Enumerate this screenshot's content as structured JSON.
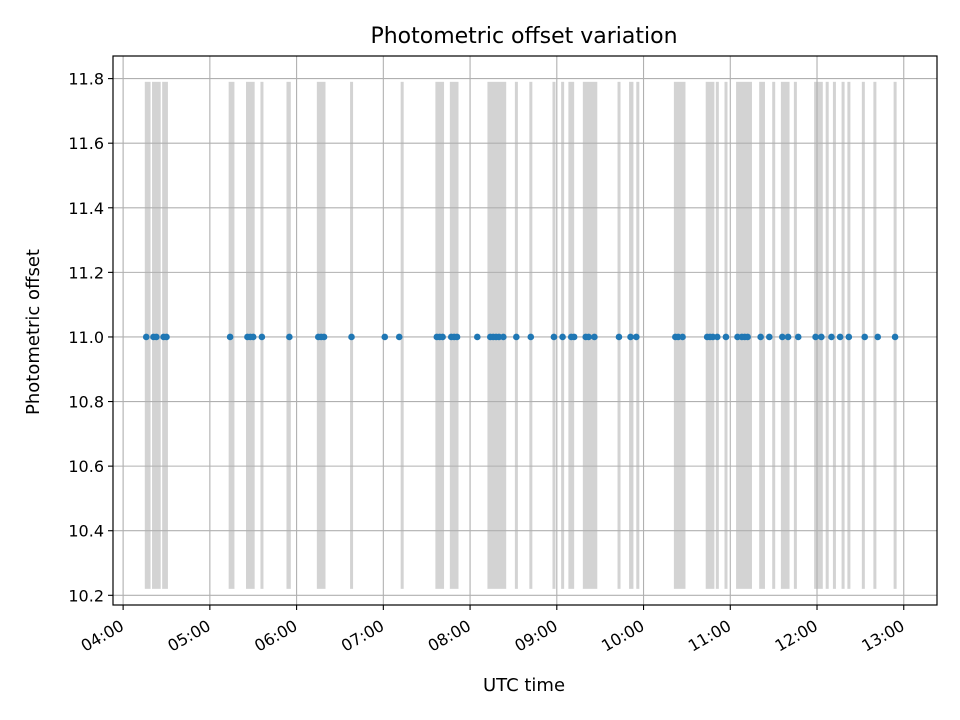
{
  "chart_data": {
    "type": "scatter",
    "title": "Photometric offset variation",
    "xlabel": "UTC time",
    "ylabel": "Photometric offset",
    "xlim": [
      "03:53",
      "13:23"
    ],
    "ylim": [
      10.17,
      11.87
    ],
    "xticks": [
      "04:00",
      "05:00",
      "06:00",
      "07:00",
      "08:00",
      "09:00",
      "10:00",
      "11:00",
      "12:00",
      "13:00"
    ],
    "yticks": [
      "10.2",
      "10.4",
      "10.6",
      "10.8",
      "11.0",
      "11.2",
      "11.4",
      "11.6",
      "11.8"
    ],
    "grid": true,
    "marker_color": "#1f77b4",
    "band_color": "#d3d3d3",
    "band_range": [
      10.22,
      11.79
    ],
    "exposure_bands": [
      [
        "04:15",
        "04:19"
      ],
      [
        "04:20",
        "04:26"
      ],
      [
        "04:27",
        "04:31"
      ],
      [
        "05:13",
        "05:17"
      ],
      [
        "05:25",
        "05:31"
      ],
      [
        "05:35",
        "05:37"
      ],
      [
        "05:53",
        "05:56"
      ],
      [
        "06:14",
        "06:20"
      ],
      [
        "06:37",
        "06:39"
      ],
      [
        "07:12",
        "07:14"
      ],
      [
        "07:36",
        "07:42"
      ],
      [
        "07:46",
        "07:52"
      ],
      [
        "08:12",
        "08:25"
      ],
      [
        "08:31",
        "08:33"
      ],
      [
        "08:41",
        "08:43"
      ],
      [
        "08:57",
        "08:59"
      ],
      [
        "09:03",
        "09:05"
      ],
      [
        "09:08",
        "09:12"
      ],
      [
        "09:18",
        "09:28"
      ],
      [
        "09:42",
        "09:44"
      ],
      [
        "09:50",
        "09:53"
      ],
      [
        "09:55",
        "09:57"
      ],
      [
        "10:21",
        "10:29"
      ],
      [
        "10:43",
        "10:49"
      ],
      [
        "10:50",
        "10:52"
      ],
      [
        "10:56",
        "10:58"
      ],
      [
        "11:04",
        "11:15"
      ],
      [
        "11:20",
        "11:24"
      ],
      [
        "11:29",
        "11:31"
      ],
      [
        "11:35",
        "11:41"
      ],
      [
        "11:44",
        "11:46"
      ],
      [
        "11:58",
        "12:04"
      ],
      [
        "12:06",
        "12:08"
      ],
      [
        "12:11",
        "12:13"
      ],
      [
        "12:17",
        "12:19"
      ],
      [
        "12:21",
        "12:23"
      ],
      [
        "12:31",
        "12:33"
      ],
      [
        "12:39",
        "12:41"
      ],
      [
        "12:53",
        "12:55"
      ]
    ],
    "points": [
      {
        "x": "04:16",
        "y": 11.0
      },
      {
        "x": "04:21",
        "y": 11.0
      },
      {
        "x": "04:23",
        "y": 11.0
      },
      {
        "x": "04:28",
        "y": 11.0
      },
      {
        "x": "04:30",
        "y": 11.0
      },
      {
        "x": "05:14",
        "y": 11.0
      },
      {
        "x": "05:26",
        "y": 11.0
      },
      {
        "x": "05:28",
        "y": 11.0
      },
      {
        "x": "05:30",
        "y": 11.0
      },
      {
        "x": "05:36",
        "y": 11.0
      },
      {
        "x": "05:55",
        "y": 11.0
      },
      {
        "x": "06:15",
        "y": 11.0
      },
      {
        "x": "06:17",
        "y": 11.0
      },
      {
        "x": "06:19",
        "y": 11.0
      },
      {
        "x": "06:38",
        "y": 11.0
      },
      {
        "x": "07:01",
        "y": 11.0
      },
      {
        "x": "07:11",
        "y": 11.0
      },
      {
        "x": "07:37",
        "y": 11.0
      },
      {
        "x": "07:39",
        "y": 11.0
      },
      {
        "x": "07:41",
        "y": 11.0
      },
      {
        "x": "07:47",
        "y": 11.0
      },
      {
        "x": "07:49",
        "y": 11.0
      },
      {
        "x": "07:51",
        "y": 11.0
      },
      {
        "x": "08:05",
        "y": 11.0
      },
      {
        "x": "08:14",
        "y": 11.0
      },
      {
        "x": "08:16",
        "y": 11.0
      },
      {
        "x": "08:18",
        "y": 11.0
      },
      {
        "x": "08:20",
        "y": 11.0
      },
      {
        "x": "08:23",
        "y": 11.0
      },
      {
        "x": "08:32",
        "y": 11.0
      },
      {
        "x": "08:42",
        "y": 11.0
      },
      {
        "x": "08:58",
        "y": 11.0
      },
      {
        "x": "09:04",
        "y": 11.0
      },
      {
        "x": "09:10",
        "y": 11.0
      },
      {
        "x": "09:12",
        "y": 11.0
      },
      {
        "x": "09:20",
        "y": 11.0
      },
      {
        "x": "09:22",
        "y": 11.0
      },
      {
        "x": "09:26",
        "y": 11.0
      },
      {
        "x": "09:43",
        "y": 11.0
      },
      {
        "x": "09:51",
        "y": 11.0
      },
      {
        "x": "09:55",
        "y": 11.0
      },
      {
        "x": "10:22",
        "y": 11.0
      },
      {
        "x": "10:24",
        "y": 11.0
      },
      {
        "x": "10:27",
        "y": 11.0
      },
      {
        "x": "10:44",
        "y": 11.0
      },
      {
        "x": "10:46",
        "y": 11.0
      },
      {
        "x": "10:48",
        "y": 11.0
      },
      {
        "x": "10:51",
        "y": 11.0
      },
      {
        "x": "10:57",
        "y": 11.0
      },
      {
        "x": "11:05",
        "y": 11.0
      },
      {
        "x": "11:08",
        "y": 11.0
      },
      {
        "x": "11:10",
        "y": 11.0
      },
      {
        "x": "11:12",
        "y": 11.0
      },
      {
        "x": "11:21",
        "y": 11.0
      },
      {
        "x": "11:27",
        "y": 11.0
      },
      {
        "x": "11:36",
        "y": 11.0
      },
      {
        "x": "11:40",
        "y": 11.0
      },
      {
        "x": "11:47",
        "y": 11.0
      },
      {
        "x": "11:59",
        "y": 11.0
      },
      {
        "x": "12:03",
        "y": 11.0
      },
      {
        "x": "12:10",
        "y": 11.0
      },
      {
        "x": "12:16",
        "y": 11.0
      },
      {
        "x": "12:22",
        "y": 11.0
      },
      {
        "x": "12:33",
        "y": 11.0
      },
      {
        "x": "12:42",
        "y": 11.0
      },
      {
        "x": "12:54",
        "y": 11.0
      }
    ]
  }
}
